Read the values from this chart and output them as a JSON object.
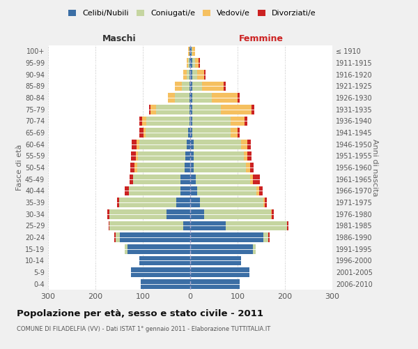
{
  "age_groups": [
    "0-4",
    "5-9",
    "10-14",
    "15-19",
    "20-24",
    "25-29",
    "30-34",
    "35-39",
    "40-44",
    "45-49",
    "50-54",
    "55-59",
    "60-64",
    "65-69",
    "70-74",
    "75-79",
    "80-84",
    "85-89",
    "90-94",
    "95-99",
    "100+"
  ],
  "birth_years": [
    "2006-2010",
    "2001-2005",
    "1996-2000",
    "1991-1995",
    "1986-1990",
    "1981-1985",
    "1976-1980",
    "1971-1975",
    "1966-1970",
    "1961-1965",
    "1956-1960",
    "1951-1955",
    "1946-1950",
    "1941-1945",
    "1936-1940",
    "1931-1935",
    "1926-1930",
    "1921-1925",
    "1916-1920",
    "1911-1915",
    "≤ 1910"
  ],
  "maschi": {
    "celibi": [
      105,
      125,
      108,
      133,
      148,
      15,
      50,
      30,
      20,
      20,
      12,
      10,
      8,
      4,
      2,
      2,
      2,
      2,
      2,
      2,
      2
    ],
    "coniugati": [
      0,
      0,
      0,
      5,
      10,
      155,
      120,
      120,
      110,
      100,
      100,
      100,
      100,
      90,
      90,
      70,
      30,
      15,
      5,
      2,
      0
    ],
    "vedovi": [
      0,
      0,
      0,
      0,
      0,
      0,
      0,
      0,
      0,
      0,
      5,
      5,
      5,
      5,
      10,
      12,
      15,
      15,
      8,
      3,
      2
    ],
    "divorziati": [
      0,
      0,
      0,
      0,
      2,
      2,
      5,
      5,
      8,
      8,
      10,
      10,
      10,
      8,
      5,
      3,
      0,
      0,
      0,
      0,
      0
    ]
  },
  "femmine": {
    "nubili": [
      105,
      125,
      108,
      133,
      155,
      75,
      30,
      20,
      15,
      12,
      8,
      8,
      8,
      5,
      5,
      5,
      5,
      5,
      5,
      5,
      3
    ],
    "coniugate": [
      0,
      0,
      0,
      5,
      10,
      130,
      140,
      135,
      125,
      115,
      110,
      105,
      100,
      80,
      80,
      60,
      40,
      20,
      10,
      5,
      2
    ],
    "vedove": [
      0,
      0,
      0,
      0,
      0,
      0,
      2,
      2,
      5,
      5,
      8,
      8,
      12,
      15,
      30,
      65,
      55,
      45,
      15,
      8,
      5
    ],
    "divorziate": [
      0,
      0,
      0,
      0,
      2,
      3,
      5,
      5,
      8,
      15,
      8,
      8,
      8,
      5,
      5,
      5,
      5,
      5,
      2,
      2,
      0
    ]
  },
  "colors": {
    "celibi": "#3b6ea5",
    "coniugati": "#c5d5a0",
    "vedovi": "#f5c060",
    "divorziati": "#cc2222"
  },
  "legend_labels": [
    "Celibi/Nubili",
    "Coniugati/e",
    "Vedovi/e",
    "Divorziati/e"
  ],
  "title": "Popolazione per età, sesso e stato civile - 2011",
  "subtitle": "COMUNE DI FILADELFIA (VV) - Dati ISTAT 1° gennaio 2011 - Elaborazione TUTTITALIA.IT",
  "ylabel_left": "Fasce di età",
  "ylabel_right": "Anni di nascita",
  "xlabel_left": "Maschi",
  "xlabel_right": "Femmine",
  "xlim": 300,
  "background_color": "#f0f0f0",
  "plot_background": "#ffffff"
}
